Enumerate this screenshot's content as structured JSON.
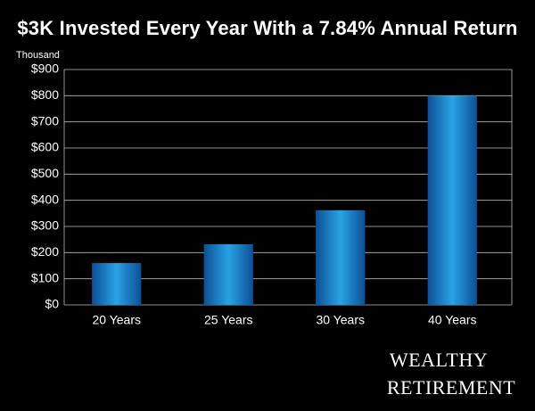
{
  "chart_data": {
    "type": "bar",
    "title": "$3K Invested Every Year With a 7.84% Annual Return",
    "y_unit": "Thousand",
    "categories": [
      "20 Years",
      "25 Years",
      "30 Years",
      "40 Years"
    ],
    "values": [
      160,
      232,
      362,
      800
    ],
    "color": "#29a3e6",
    "ylim": [
      0,
      900
    ],
    "yticks": [
      {
        "value": 0,
        "label": "$0"
      },
      {
        "value": 100,
        "label": "$100"
      },
      {
        "value": 200,
        "label": "$200"
      },
      {
        "value": 300,
        "label": "$300"
      },
      {
        "value": 400,
        "label": "$400"
      },
      {
        "value": 500,
        "label": "$500"
      },
      {
        "value": 600,
        "label": "$600"
      },
      {
        "value": 700,
        "label": "$700"
      },
      {
        "value": 800,
        "label": "$800"
      },
      {
        "value": 900,
        "label": "$900"
      }
    ],
    "grid": true,
    "brand": [
      "WEALTHY",
      "RETIREMENT"
    ]
  }
}
